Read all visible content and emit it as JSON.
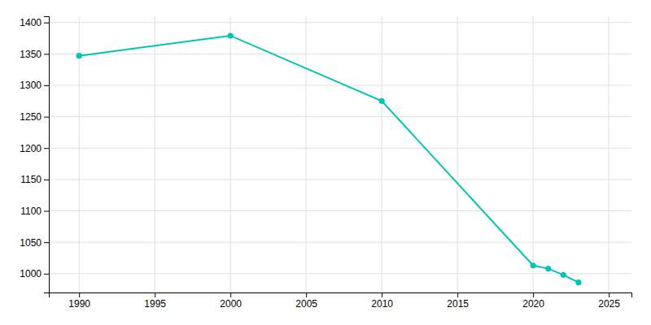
{
  "chart_data": {
    "type": "line",
    "x": [
      1990,
      2000,
      2010,
      2020,
      2021,
      2022,
      2023
    ],
    "values": [
      1347,
      1379,
      1275,
      1013,
      1008,
      998,
      986
    ],
    "color": "#00c5b0",
    "marker": "circle",
    "xlim": [
      1988,
      2026.5
    ],
    "ylim": [
      970,
      1410
    ],
    "xticks": [
      1990,
      1995,
      2000,
      2005,
      2010,
      2015,
      2020,
      2025
    ],
    "yticks": [
      1000,
      1050,
      1100,
      1150,
      1200,
      1250,
      1300,
      1350,
      1400
    ],
    "grid": true
  }
}
